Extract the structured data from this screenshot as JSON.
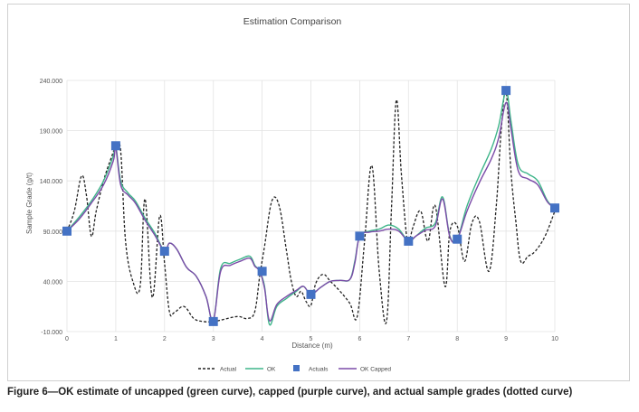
{
  "caption": "Figure 6—OK estimate of uncapped (green curve), capped (purple curve), and actual sample grades (dotted curve)",
  "chart_data": {
    "type": "line",
    "title": "Estimation Comparison",
    "xlabel": "Distance (m)",
    "ylabel": "Sample Grade (g/t)",
    "xlim": [
      0,
      10
    ],
    "ylim": [
      -10,
      240
    ],
    "x_ticks": [
      "0",
      "1",
      "2",
      "3",
      "4",
      "5",
      "6",
      "7",
      "8",
      "9",
      "10"
    ],
    "y_ticks": [
      "-10.000",
      "40.000",
      "90.000",
      "140.000",
      "190.000",
      "240.000"
    ],
    "legend_position": "bottom",
    "grid": true,
    "colors": {
      "actual": "#222222",
      "ok": "#3fb58a",
      "actuals": "#4472c4",
      "ok_capped": "#7b4ba8",
      "grid": "#e3e3e3"
    },
    "series": [
      {
        "name": "Actual",
        "style": "dashed",
        "x": [
          0,
          0.15,
          0.3,
          0.4,
          0.5,
          0.6,
          0.75,
          0.9,
          1.0,
          1.1,
          1.2,
          1.35,
          1.5,
          1.6,
          1.75,
          1.9,
          2.0,
          2.1,
          2.2,
          2.4,
          2.6,
          2.8,
          3.0,
          3.2,
          3.5,
          3.7,
          3.85,
          3.95,
          4.05,
          4.2,
          4.35,
          4.5,
          4.6,
          4.7,
          4.8,
          4.9,
          5.0,
          5.1,
          5.25,
          5.4,
          5.6,
          5.8,
          5.95,
          6.1,
          6.25,
          6.4,
          6.55,
          6.65,
          6.75,
          6.85,
          6.95,
          7.0,
          7.1,
          7.25,
          7.4,
          7.55,
          7.75,
          7.85,
          8.0,
          8.15,
          8.3,
          8.45,
          8.65,
          8.8,
          8.9,
          9.0,
          9.1,
          9.2,
          9.3,
          9.45,
          9.6,
          9.8,
          10.0
        ],
        "y": [
          90,
          110,
          145,
          125,
          85,
          110,
          140,
          162,
          173,
          170,
          80,
          40,
          35,
          122,
          24,
          105,
          58,
          10,
          9,
          15,
          3,
          0,
          0,
          2,
          5,
          3,
          10,
          45,
          75,
          120,
          115,
          70,
          40,
          25,
          30,
          20,
          16,
          38,
          47,
          40,
          30,
          18,
          5,
          80,
          155,
          50,
          0,
          110,
          220,
          150,
          90,
          78,
          95,
          110,
          80,
          115,
          35,
          90,
          95,
          60,
          98,
          100,
          50,
          115,
          190,
          230,
          150,
          100,
          60,
          65,
          70,
          85,
          110
        ]
      },
      {
        "name": "OK",
        "style": "solid",
        "x": [
          0,
          0.25,
          0.5,
          0.75,
          0.95,
          1.0,
          1.1,
          1.25,
          1.4,
          1.6,
          1.8,
          2.0,
          2.1,
          2.25,
          2.45,
          2.65,
          2.85,
          3.0,
          3.15,
          3.35,
          3.55,
          3.75,
          3.85,
          3.95,
          4.05,
          4.15,
          4.3,
          4.5,
          4.7,
          4.85,
          5.0,
          5.2,
          5.4,
          5.6,
          5.8,
          5.9,
          6.0,
          6.2,
          6.4,
          6.6,
          6.8,
          7.0,
          7.15,
          7.35,
          7.55,
          7.7,
          7.85,
          8.0,
          8.2,
          8.45,
          8.7,
          8.85,
          9.0,
          9.1,
          9.25,
          9.45,
          9.65,
          9.85,
          10.0
        ],
        "y": [
          90,
          104,
          120,
          140,
          165,
          175,
          140,
          128,
          120,
          103,
          88,
          70,
          78,
          72,
          54,
          45,
          25,
          1,
          53,
          58,
          62,
          65,
          56,
          50,
          35,
          -3,
          15,
          23,
          30,
          35,
          27,
          34,
          40,
          41,
          42,
          60,
          85,
          90,
          92,
          96,
          92,
          80,
          85,
          93,
          98,
          124,
          85,
          82,
          115,
          145,
          172,
          195,
          229,
          200,
          156,
          147,
          140,
          120,
          113
        ]
      },
      {
        "name": "OK Capped",
        "style": "solid",
        "x": [
          0,
          0.25,
          0.5,
          0.75,
          0.95,
          1.0,
          1.1,
          1.25,
          1.4,
          1.6,
          1.8,
          2.0,
          2.1,
          2.25,
          2.45,
          2.65,
          2.85,
          3.0,
          3.15,
          3.35,
          3.55,
          3.75,
          3.85,
          3.95,
          4.05,
          4.15,
          4.3,
          4.5,
          4.7,
          4.85,
          5.0,
          5.2,
          5.4,
          5.6,
          5.8,
          5.9,
          6.0,
          6.2,
          6.4,
          6.6,
          6.8,
          7.0,
          7.15,
          7.35,
          7.55,
          7.7,
          7.85,
          8.0,
          8.2,
          8.45,
          8.7,
          8.85,
          9.0,
          9.1,
          9.25,
          9.45,
          9.65,
          9.85,
          10.0
        ],
        "y": [
          90,
          102,
          118,
          136,
          160,
          173,
          136,
          126,
          118,
          101,
          86,
          70,
          78,
          72,
          54,
          45,
          25,
          1,
          50,
          56,
          60,
          63,
          55,
          50,
          33,
          1,
          17,
          25,
          31,
          35,
          27,
          34,
          40,
          41,
          42,
          58,
          85,
          89,
          90,
          92,
          90,
          80,
          85,
          91,
          95,
          122,
          84,
          82,
          110,
          138,
          162,
          183,
          218,
          192,
          150,
          142,
          136,
          119,
          113
        ]
      },
      {
        "name": "Actuals",
        "style": "markers",
        "x": [
          0,
          1,
          2,
          3,
          4,
          5,
          6,
          7,
          8,
          9,
          10
        ],
        "y": [
          90,
          175,
          70,
          0,
          50,
          27,
          85,
          80,
          82,
          230,
          113
        ]
      }
    ]
  }
}
